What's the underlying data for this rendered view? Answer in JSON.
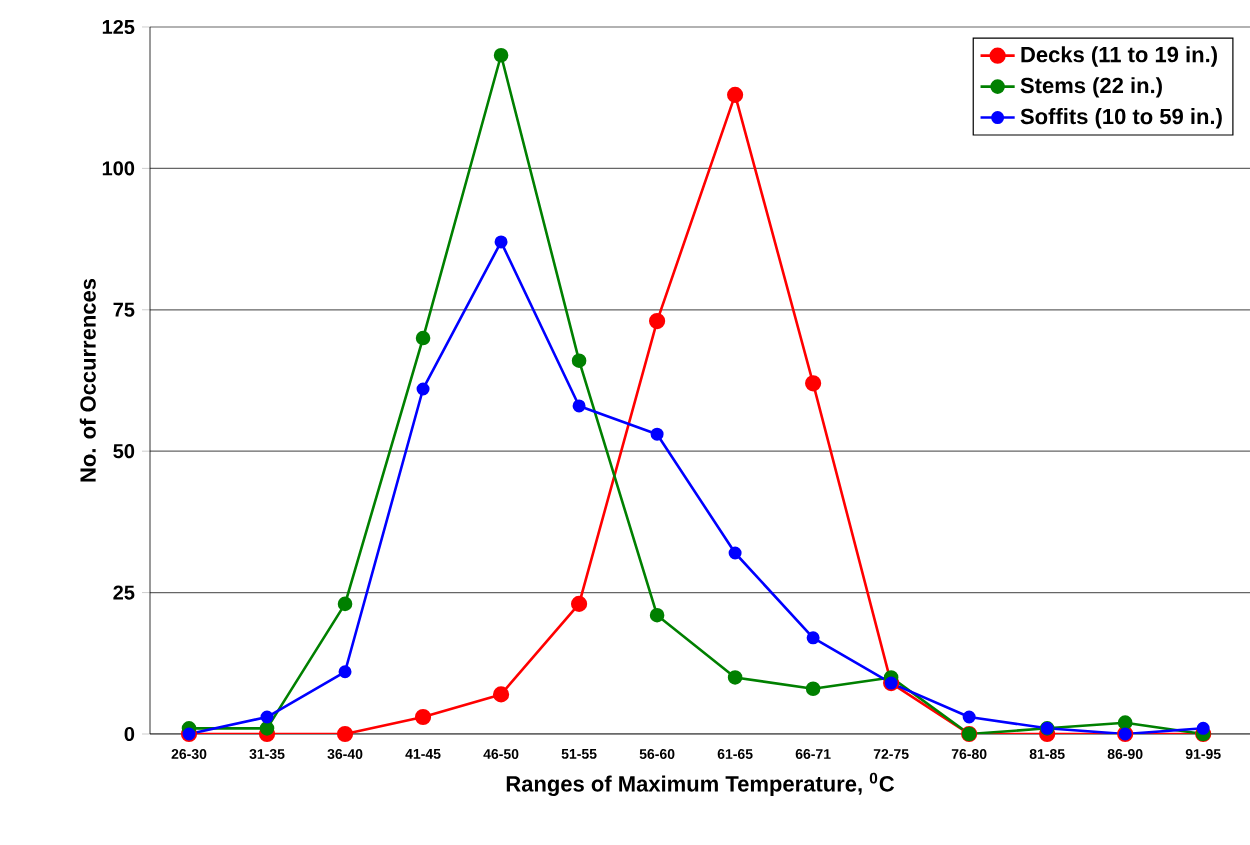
{
  "chart_data": {
    "type": "line",
    "xlabel": "Ranges of Maximum Temperature, $^{0}$C",
    "ylabel": "No. of Occurrences",
    "categories": [
      "26-30",
      "31-35",
      "36-40",
      "41-45",
      "46-50",
      "51-55",
      "56-60",
      "61-65",
      "66-71",
      "72-75",
      "76-80",
      "81-85",
      "86-90",
      "91-95"
    ],
    "series": [
      {
        "name": "Decks (11 to 19 in.)",
        "color": "#ff0000",
        "values": [
          0,
          0,
          0,
          3,
          7,
          23,
          73,
          113,
          62,
          9,
          0,
          0,
          0,
          0
        ]
      },
      {
        "name": "Stems (22 in.)",
        "color": "#008000",
        "values": [
          1,
          1,
          23,
          70,
          120,
          66,
          21,
          10,
          8,
          10,
          0,
          1,
          2,
          0
        ]
      },
      {
        "name": "Soffits (10 to 59 in.)",
        "color": "#0000ff",
        "values": [
          0,
          3,
          11,
          61,
          87,
          58,
          53,
          32,
          17,
          9,
          3,
          1,
          0,
          1
        ]
      }
    ],
    "ylim": [
      0,
      125
    ],
    "yticks": [
      0,
      25,
      50,
      75,
      100,
      125
    ],
    "grid": "y",
    "legend": "top right",
    "marker": "circle",
    "line_style": "solid"
  }
}
